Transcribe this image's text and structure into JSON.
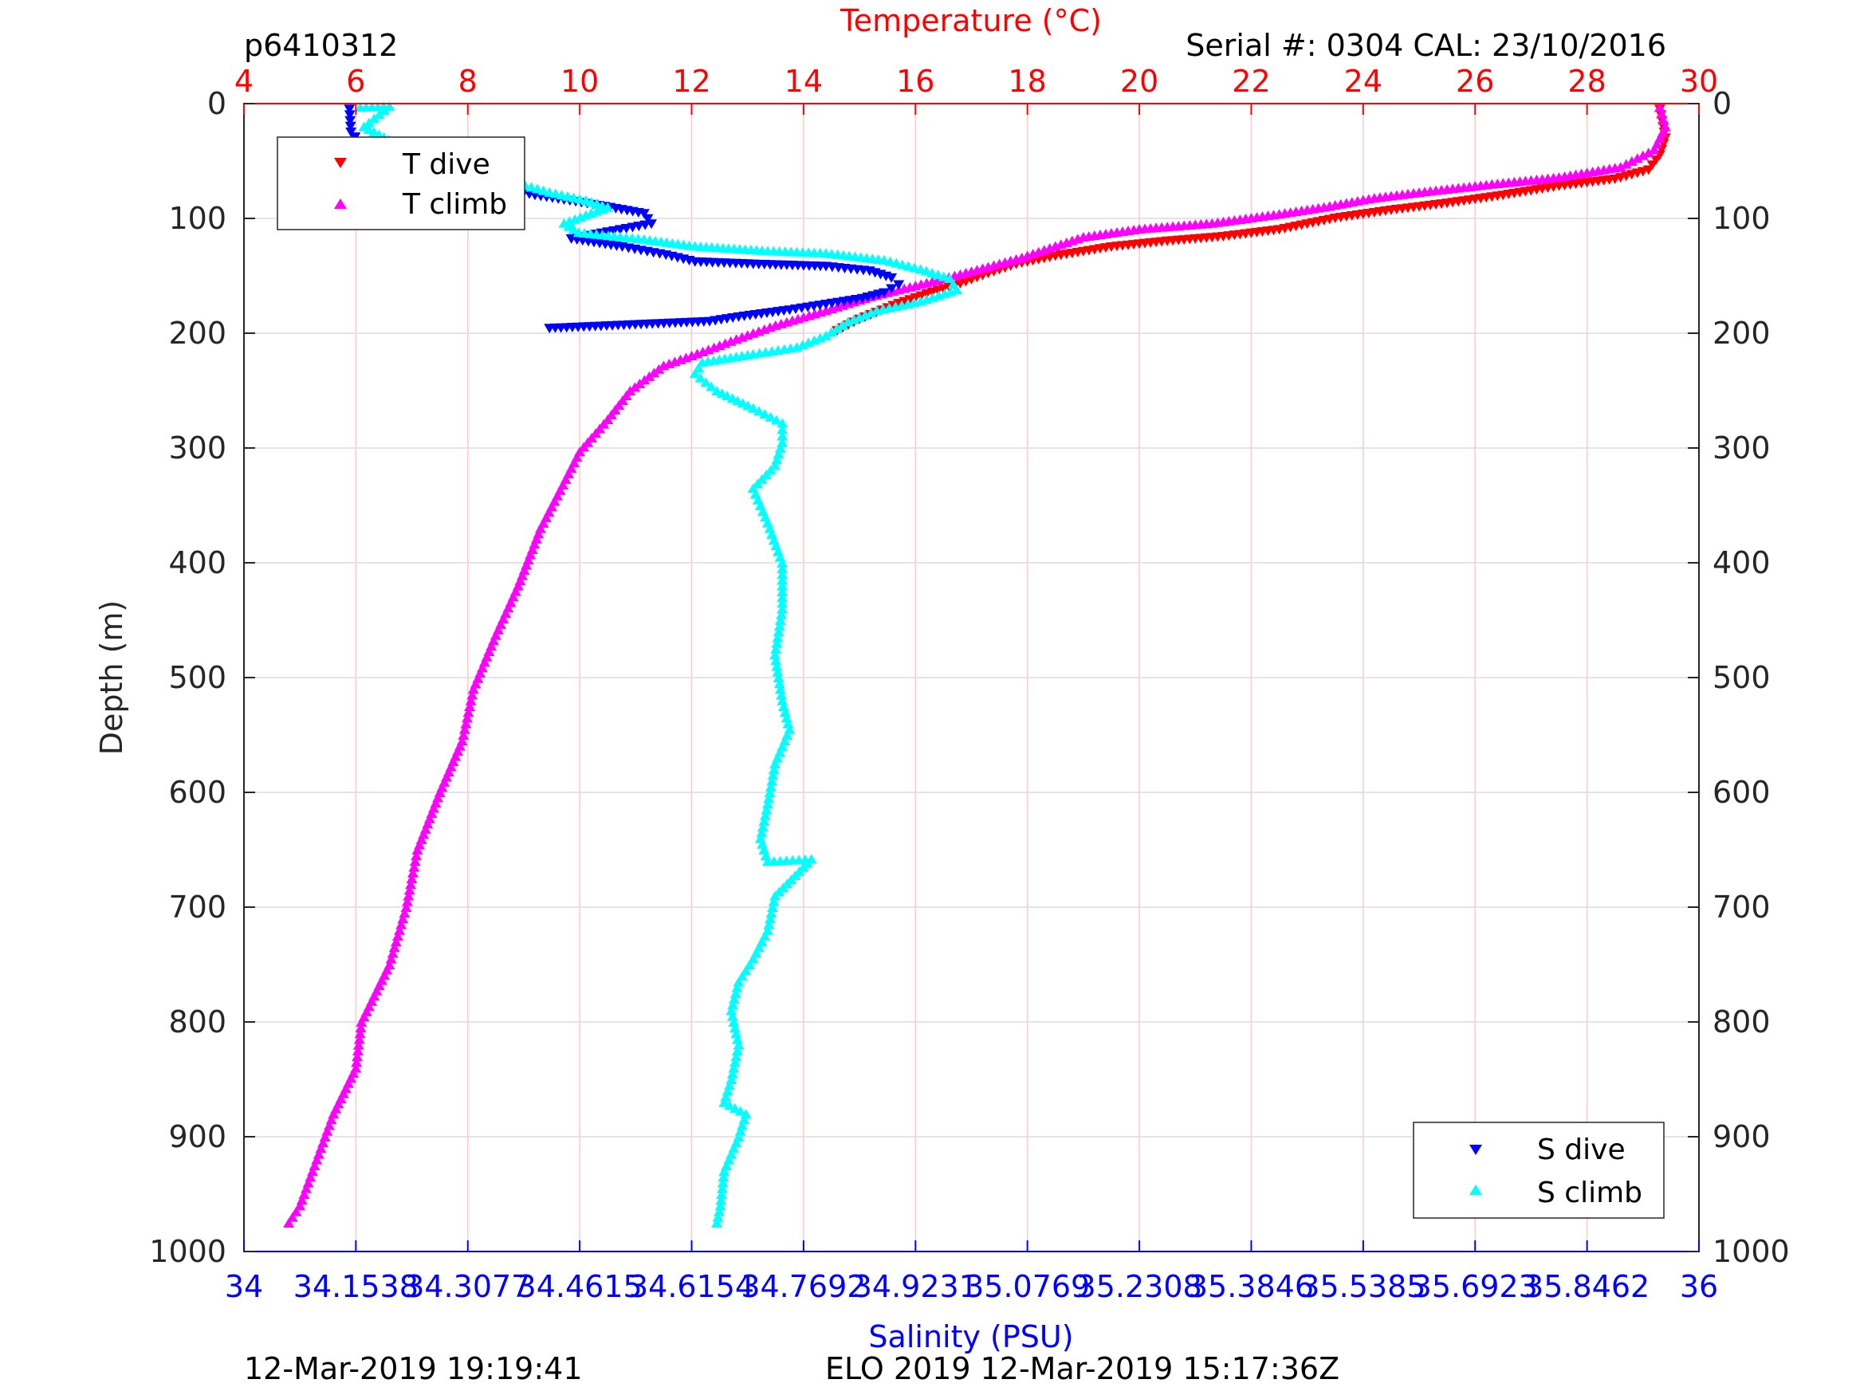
{
  "header": {
    "profile_id": "p6410312",
    "serial_cal": "Serial #: 0304  CAL: 23/10/2016"
  },
  "footer": {
    "left_timestamp": "12-Mar-2019 19:19:41",
    "center_label": "ELO 2019 12-Mar-2019 15:17:36Z"
  },
  "legend_temperature": {
    "items": [
      "T dive",
      "T climb"
    ]
  },
  "legend_salinity": {
    "items": [
      "S dive",
      "S climb"
    ]
  },
  "colors": {
    "t_dive": "#ff0000",
    "t_climb": "#ff00ff",
    "s_dive": "#0000ff",
    "s_climb": "#00ffff",
    "temp_axis": "#ff0000",
    "sal_axis": "#0000ff",
    "depth_axis": "#262626",
    "temp_grid": "#ffc8c8",
    "depth_grid": "#dcdcdc"
  },
  "chart_data": {
    "type": "scatter",
    "ylabel": "Depth (m)",
    "y_reversed": true,
    "ylim": [
      0,
      1000
    ],
    "yticks": [
      "0",
      "100",
      "200",
      "300",
      "400",
      "500",
      "600",
      "700",
      "800",
      "900",
      "1000"
    ],
    "temperature_axis": {
      "label": "Temperature (°C)",
      "position": "top",
      "range": [
        4,
        30
      ],
      "ticks": [
        "4",
        "6",
        "8",
        "10",
        "12",
        "14",
        "16",
        "18",
        "20",
        "22",
        "24",
        "26",
        "28",
        "30"
      ]
    },
    "salinity_axis": {
      "label": "Salinity (PSU)",
      "position": "bottom",
      "range": [
        34,
        36
      ],
      "ticks": [
        "34",
        "34.1538",
        "34.3077",
        "34.4615",
        "34.6154",
        "34.7692",
        "34.9231",
        "35.0769",
        "35.2308",
        "35.3846",
        "35.5385",
        "35.6923",
        "35.8462",
        "36"
      ]
    },
    "grid": "vertical lines at temperature ticks, horizontal lines at depth ticks",
    "series": [
      {
        "name": "T dive",
        "axis": "temperature",
        "marker": "triangle-down",
        "points": [
          [
            29.3,
            5
          ],
          [
            29.4,
            30
          ],
          [
            29.3,
            45
          ],
          [
            29.1,
            58
          ],
          [
            28.5,
            66
          ],
          [
            27.5,
            72
          ],
          [
            26.5,
            80
          ],
          [
            25.5,
            87
          ],
          [
            24.5,
            93
          ],
          [
            23.5,
            100
          ],
          [
            22.5,
            110
          ],
          [
            21.5,
            116
          ],
          [
            20.5,
            120
          ],
          [
            19.5,
            125
          ],
          [
            18.5,
            133
          ],
          [
            17.8,
            140
          ],
          [
            17.3,
            148
          ],
          [
            16.8,
            157
          ],
          [
            16.2,
            166
          ],
          [
            15.6,
            176
          ],
          [
            15.0,
            188
          ],
          [
            14.6,
            198
          ]
        ]
      },
      {
        "name": "T climb",
        "axis": "temperature",
        "marker": "triangle-up",
        "points": [
          [
            29.3,
            3
          ],
          [
            29.4,
            20
          ],
          [
            29.2,
            40
          ],
          [
            28.6,
            55
          ],
          [
            27.5,
            64
          ],
          [
            26.3,
            70
          ],
          [
            25.2,
            76
          ],
          [
            24.2,
            82
          ],
          [
            23.3,
            90
          ],
          [
            22.5,
            96
          ],
          [
            21.3,
            104
          ],
          [
            20.0,
            109
          ],
          [
            19.0,
            116
          ],
          [
            18.5,
            124
          ],
          [
            17.9,
            134
          ],
          [
            17.0,
            146
          ],
          [
            16.2,
            156
          ],
          [
            15.2,
            168
          ],
          [
            14.4,
            180
          ],
          [
            13.5,
            193
          ],
          [
            12.8,
            205
          ],
          [
            12.2,
            216
          ],
          [
            11.5,
            228
          ],
          [
            10.9,
            250
          ],
          [
            10.5,
            275
          ],
          [
            10.0,
            303
          ],
          [
            9.7,
            332
          ],
          [
            9.3,
            370
          ],
          [
            8.9,
            420
          ],
          [
            8.5,
            463
          ],
          [
            8.1,
            510
          ],
          [
            7.9,
            555
          ],
          [
            7.5,
            600
          ],
          [
            7.1,
            650
          ],
          [
            6.9,
            700
          ],
          [
            6.6,
            750
          ],
          [
            6.1,
            800
          ],
          [
            6.0,
            840
          ],
          [
            5.6,
            880
          ],
          [
            5.3,
            920
          ],
          [
            5.0,
            960
          ],
          [
            4.8,
            975
          ]
        ]
      },
      {
        "name": "S dive",
        "axis": "salinity",
        "marker": "triangle-down",
        "points": [
          [
            34.145,
            5
          ],
          [
            34.147,
            25
          ],
          [
            34.17,
            42
          ],
          [
            34.25,
            58
          ],
          [
            34.33,
            70
          ],
          [
            34.4,
            80
          ],
          [
            34.48,
            88
          ],
          [
            34.55,
            96
          ],
          [
            34.56,
            105
          ],
          [
            34.5,
            112
          ],
          [
            34.45,
            118
          ],
          [
            34.52,
            125
          ],
          [
            34.58,
            132
          ],
          [
            34.62,
            138
          ],
          [
            34.7,
            140
          ],
          [
            34.8,
            142
          ],
          [
            34.86,
            146
          ],
          [
            34.89,
            152
          ],
          [
            34.9,
            158
          ],
          [
            34.88,
            165
          ],
          [
            34.85,
            170
          ],
          [
            34.8,
            175
          ],
          [
            34.75,
            180
          ],
          [
            34.68,
            186
          ],
          [
            34.64,
            190
          ],
          [
            34.42,
            196
          ]
        ]
      },
      {
        "name": "S climb",
        "axis": "salinity",
        "marker": "triangle-up",
        "points": [
          [
            34.16,
            3
          ],
          [
            34.2,
            2
          ],
          [
            34.165,
            20
          ],
          [
            34.22,
            38
          ],
          [
            34.3,
            55
          ],
          [
            34.37,
            68
          ],
          [
            34.42,
            77
          ],
          [
            34.47,
            84
          ],
          [
            34.5,
            90
          ],
          [
            34.47,
            97
          ],
          [
            34.44,
            104
          ],
          [
            34.46,
            112
          ],
          [
            34.55,
            118
          ],
          [
            34.62,
            124
          ],
          [
            34.72,
            128
          ],
          [
            34.8,
            130
          ],
          [
            34.88,
            136
          ],
          [
            34.93,
            144
          ],
          [
            34.97,
            152
          ],
          [
            34.98,
            162
          ],
          [
            34.93,
            172
          ],
          [
            34.87,
            180
          ],
          [
            34.83,
            190
          ],
          [
            34.8,
            202
          ],
          [
            34.76,
            212
          ],
          [
            34.7,
            218
          ],
          [
            34.63,
            225
          ],
          [
            34.62,
            235
          ],
          [
            34.65,
            250
          ],
          [
            34.7,
            265
          ],
          [
            34.74,
            278
          ],
          [
            34.74,
            295
          ],
          [
            34.73,
            315
          ],
          [
            34.7,
            335
          ],
          [
            34.72,
            365
          ],
          [
            34.74,
            400
          ],
          [
            34.74,
            440
          ],
          [
            34.73,
            480
          ],
          [
            34.74,
            520
          ],
          [
            34.75,
            545
          ],
          [
            34.73,
            575
          ],
          [
            34.72,
            610
          ],
          [
            34.71,
            640
          ],
          [
            34.72,
            660
          ],
          [
            34.78,
            658
          ],
          [
            34.73,
            690
          ],
          [
            34.72,
            720
          ],
          [
            34.7,
            745
          ],
          [
            34.68,
            765
          ],
          [
            34.67,
            790
          ],
          [
            34.68,
            820
          ],
          [
            34.67,
            850
          ],
          [
            34.66,
            870
          ],
          [
            34.69,
            880
          ],
          [
            34.68,
            900
          ],
          [
            34.66,
            930
          ],
          [
            34.655,
            960
          ],
          [
            34.65,
            975
          ]
        ]
      }
    ]
  }
}
